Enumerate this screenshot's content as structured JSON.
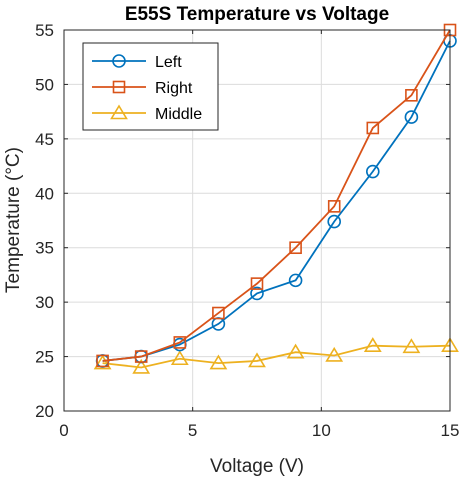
{
  "chart_data": {
    "type": "line",
    "title": "E55S Temperature vs Voltage",
    "xlabel": "Voltage (V)",
    "ylabel": "Temperature (°C)",
    "xlim": [
      0,
      15
    ],
    "ylim": [
      20,
      55
    ],
    "xticks": [
      0,
      5,
      10,
      15
    ],
    "yticks": [
      20,
      25,
      30,
      35,
      40,
      45,
      50,
      55
    ],
    "grid": true,
    "legend_position": "top-left",
    "x": [
      1.5,
      3,
      4.5,
      6,
      7.5,
      9,
      10.5,
      12,
      13.5,
      15
    ],
    "series": [
      {
        "name": "Left",
        "color": "#0072BD",
        "marker": "circle",
        "values": [
          24.6,
          25.0,
          26.1,
          28.0,
          30.8,
          32.0,
          37.4,
          42.0,
          47.0,
          54.0
        ]
      },
      {
        "name": "Right",
        "color": "#D95319",
        "marker": "square",
        "values": [
          24.6,
          25.0,
          26.3,
          29.0,
          31.7,
          35.0,
          38.8,
          46.0,
          49.0,
          55.0
        ]
      },
      {
        "name": "Middle",
        "color": "#EDB120",
        "marker": "triangle",
        "values": [
          24.4,
          24.0,
          24.8,
          24.4,
          24.6,
          25.4,
          25.1,
          26.0,
          25.9,
          26.0
        ]
      }
    ]
  }
}
